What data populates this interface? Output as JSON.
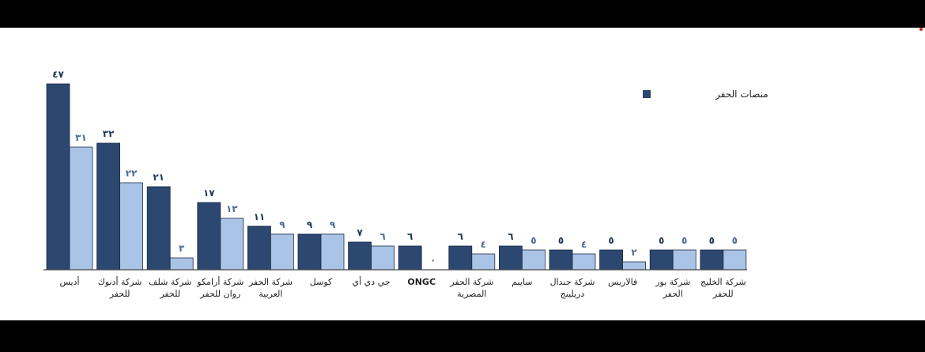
{
  "chart_data": {
    "type": "bar",
    "categories": [
      [
        "أديس"
      ],
      [
        "شركة أدنوك",
        "للحفر"
      ],
      [
        "شركة شلف",
        "للحفر"
      ],
      [
        "شركة أرامكو",
        "روان للحفر"
      ],
      [
        "شركة الحفر",
        "العربية"
      ],
      [
        "كوسل"
      ],
      [
        "جي دي أي"
      ],
      [
        "ONGC"
      ],
      [
        "شركة الحفر",
        "المصرية"
      ],
      [
        "سايبم"
      ],
      [
        "شركة جندال",
        "دريلينج"
      ],
      [
        "فالاريس"
      ],
      [
        "شركة بور",
        "الحفر"
      ],
      [
        "شركة الخليج",
        "للحفر"
      ]
    ],
    "series": [
      {
        "name": "منصات الحفر",
        "color": "#2c4770",
        "values": [
          47,
          32,
          21,
          17,
          11,
          9,
          7,
          6,
          6,
          6,
          5,
          5,
          5,
          5
        ],
        "labels": [
          "٤٧",
          "٣٢",
          "٢١",
          "١٧",
          "١١",
          "٩",
          "٧",
          "٦",
          "٦",
          "٦",
          "٥",
          "٥",
          "٥",
          "٥"
        ]
      },
      {
        "name": "",
        "color": "#a9c4e6",
        "values": [
          31,
          22,
          3,
          13,
          9,
          9,
          6,
          0,
          4,
          5,
          4,
          2,
          5,
          5
        ],
        "labels": [
          "٣١",
          "٢٢",
          "٣",
          "١٣",
          "٩",
          "٩",
          "٦",
          "٠",
          "٤",
          "٥",
          "٤",
          "٢",
          "٥",
          "٥"
        ]
      }
    ],
    "ylim": [
      0,
      50
    ],
    "legend": {
      "position": "top-right",
      "label": "منصات الحفر"
    },
    "grid": false
  }
}
